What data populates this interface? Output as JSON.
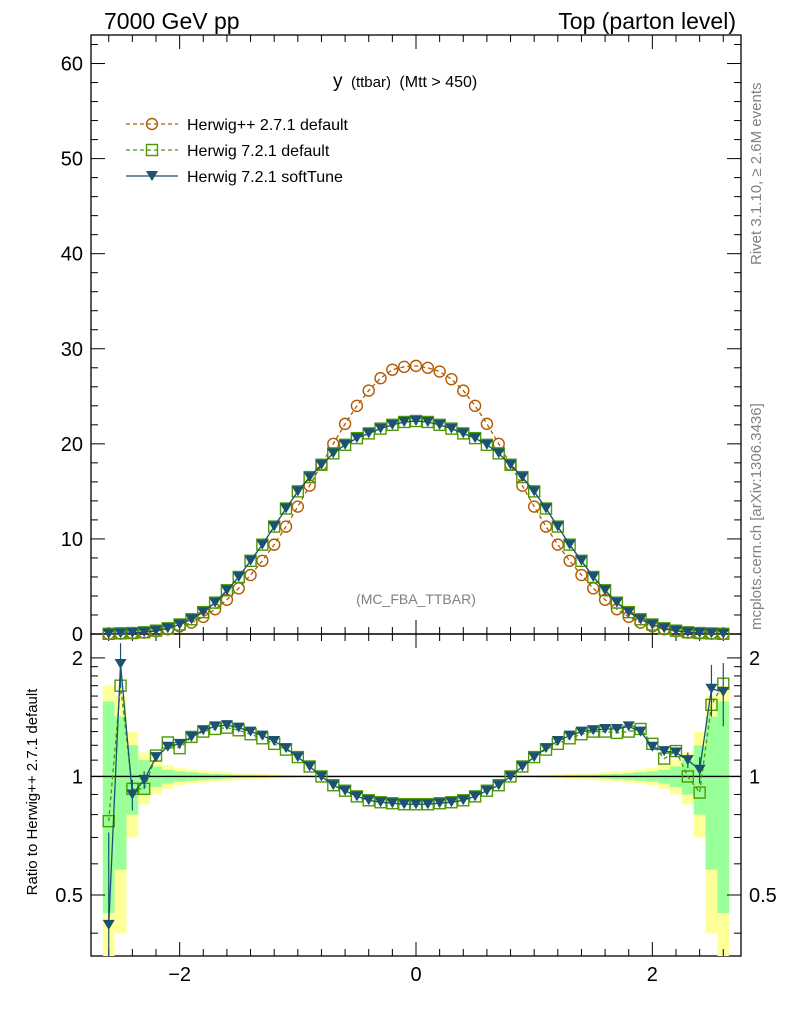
{
  "header": {
    "left": "7000 GeV pp",
    "right": "Top (parton level)"
  },
  "plot_title": {
    "main": "y",
    "sub1": "(ttbar)",
    "sub2": "(Mtt > 450)"
  },
  "side_labels": {
    "rivet": "Rivet 3.1.10, ≥ 2.6M events",
    "mcplots": "mcplots.cern.ch [arXiv:1306.3436]"
  },
  "watermark": "(MC_FBA_TTBAR)",
  "ratio_ylabel": "Ratio to Herwig++ 2.7.1 default",
  "legend": [
    {
      "label": "Herwig++ 2.7.1 default",
      "color": "#b35900",
      "marker": "circle-open",
      "dash": true
    },
    {
      "label": "Herwig 7.2.1 default",
      "color": "#4d9900",
      "marker": "square-open",
      "dash": true
    },
    {
      "label": "Herwig 7.2.1 softTune",
      "color": "#1a5270",
      "marker": "triangle-down-filled",
      "dash": false
    }
  ],
  "chart_data": [
    {
      "type": "line",
      "title": "y (ttbar) (Mtt > 450)",
      "xlim": [
        -2.75,
        2.75
      ],
      "ylim": [
        0,
        63
      ],
      "x_ticks": [
        -2,
        0,
        2
      ],
      "y_ticks": [
        0,
        10,
        20,
        30,
        40,
        50,
        60
      ],
      "x": [
        -2.6,
        -2.5,
        -2.4,
        -2.3,
        -2.2,
        -2.1,
        -2.0,
        -1.9,
        -1.8,
        -1.7,
        -1.6,
        -1.5,
        -1.4,
        -1.3,
        -1.2,
        -1.1,
        -1.0,
        -0.9,
        -0.8,
        -0.7,
        -0.6,
        -0.5,
        -0.4,
        -0.3,
        -0.2,
        -0.1,
        0.0,
        0.1,
        0.2,
        0.3,
        0.4,
        0.5,
        0.6,
        0.7,
        0.8,
        0.9,
        1.0,
        1.1,
        1.2,
        1.3,
        1.4,
        1.5,
        1.6,
        1.7,
        1.8,
        1.9,
        2.0,
        2.1,
        2.2,
        2.3,
        2.4,
        2.5,
        2.6
      ],
      "series": [
        {
          "name": "Herwig++ 2.7.1 default",
          "values": [
            0.02,
            0.04,
            0.08,
            0.14,
            0.3,
            0.5,
            0.8,
            1.2,
            1.8,
            2.6,
            3.6,
            4.8,
            6.2,
            7.7,
            9.4,
            11.3,
            13.4,
            15.6,
            17.8,
            20.0,
            22.1,
            24.0,
            25.6,
            26.9,
            27.8,
            28.1,
            28.2,
            28.0,
            27.6,
            26.8,
            25.6,
            24.0,
            22.1,
            20.0,
            17.8,
            15.6,
            13.4,
            11.3,
            9.4,
            7.7,
            6.2,
            4.8,
            3.6,
            2.6,
            1.8,
            1.2,
            0.8,
            0.5,
            0.3,
            0.14,
            0.08,
            0.04,
            0.02
          ]
        },
        {
          "name": "Herwig 7.2.1 default",
          "values": [
            0.02,
            0.07,
            0.1,
            0.18,
            0.35,
            0.6,
            1.0,
            1.55,
            2.3,
            3.3,
            4.6,
            6.0,
            7.7,
            9.4,
            11.3,
            13.2,
            15.0,
            16.5,
            17.8,
            19.0,
            19.9,
            20.6,
            21.1,
            21.6,
            22.0,
            22.3,
            22.4,
            22.3,
            22.0,
            21.6,
            21.1,
            20.6,
            19.9,
            19.0,
            17.8,
            16.5,
            15.0,
            13.2,
            11.3,
            9.4,
            7.7,
            6.0,
            4.6,
            3.3,
            2.3,
            1.55,
            1.0,
            0.6,
            0.35,
            0.18,
            0.1,
            0.06,
            0.02
          ]
        },
        {
          "name": "Herwig 7.2.1 softTune",
          "values": [
            0.02,
            0.07,
            0.1,
            0.18,
            0.35,
            0.6,
            1.0,
            1.55,
            2.3,
            3.3,
            4.6,
            6.0,
            7.7,
            9.4,
            11.3,
            13.2,
            15.0,
            16.5,
            17.8,
            19.0,
            19.9,
            20.6,
            21.1,
            21.6,
            22.0,
            22.3,
            22.4,
            22.3,
            22.0,
            21.6,
            21.1,
            20.6,
            19.9,
            19.0,
            17.8,
            16.5,
            15.0,
            13.2,
            11.3,
            9.4,
            7.7,
            6.0,
            4.6,
            3.3,
            2.3,
            1.55,
            1.0,
            0.6,
            0.35,
            0.18,
            0.1,
            0.06,
            0.02
          ]
        }
      ]
    },
    {
      "type": "line",
      "ylabel": "Ratio to Herwig++ 2.7.1 default",
      "xlim": [
        -2.75,
        2.75
      ],
      "ylim": [
        0.35,
        2.3
      ],
      "y_log": true,
      "x_ticks": [
        -2,
        0,
        2
      ],
      "y_ticks": [
        0.5,
        1,
        2
      ],
      "reference": 1,
      "x": [
        -2.6,
        -2.5,
        -2.4,
        -2.3,
        -2.2,
        -2.1,
        -2.0,
        -1.9,
        -1.8,
        -1.7,
        -1.6,
        -1.5,
        -1.4,
        -1.3,
        -1.2,
        -1.1,
        -1.0,
        -0.9,
        -0.8,
        -0.7,
        -0.6,
        -0.5,
        -0.4,
        -0.3,
        -0.2,
        -0.1,
        0.0,
        0.1,
        0.2,
        0.3,
        0.4,
        0.5,
        0.6,
        0.7,
        0.8,
        0.9,
        1.0,
        1.1,
        1.2,
        1.3,
        1.4,
        1.5,
        1.6,
        1.7,
        1.8,
        1.9,
        2.0,
        2.1,
        2.2,
        2.3,
        2.4,
        2.5,
        2.6
      ],
      "series": [
        {
          "name": "Herwig 7.2.1 default",
          "values": [
            0.77,
            1.7,
            0.93,
            0.93,
            1.13,
            1.22,
            1.18,
            1.26,
            1.3,
            1.32,
            1.33,
            1.31,
            1.28,
            1.25,
            1.21,
            1.17,
            1.12,
            1.06,
            1.0,
            0.95,
            0.92,
            0.89,
            0.87,
            0.86,
            0.855,
            0.85,
            0.85,
            0.85,
            0.855,
            0.86,
            0.87,
            0.89,
            0.92,
            0.95,
            1.0,
            1.06,
            1.12,
            1.17,
            1.21,
            1.25,
            1.28,
            1.3,
            1.3,
            1.29,
            1.3,
            1.32,
            1.21,
            1.11,
            1.16,
            1.0,
            0.91,
            1.52,
            1.72
          ]
        },
        {
          "name": "Herwig 7.2.1 softTune",
          "values": [
            0.42,
            1.93,
            0.9,
            0.98,
            1.12,
            1.19,
            1.21,
            1.26,
            1.31,
            1.34,
            1.35,
            1.33,
            1.3,
            1.27,
            1.23,
            1.18,
            1.12,
            1.06,
            1.0,
            0.95,
            0.92,
            0.89,
            0.87,
            0.86,
            0.855,
            0.85,
            0.85,
            0.85,
            0.855,
            0.86,
            0.87,
            0.89,
            0.92,
            0.95,
            1.0,
            1.06,
            1.12,
            1.18,
            1.23,
            1.27,
            1.3,
            1.31,
            1.32,
            1.32,
            1.34,
            1.3,
            1.19,
            1.16,
            1.15,
            1.1,
            1.04,
            1.67,
            1.64
          ]
        }
      ],
      "errors": {
        "Herwig 7.2.1 softTune": [
          0.3,
          0.25,
          0.08,
          0.05,
          0.03,
          0.02,
          0.015,
          0.01,
          0.01,
          0.01,
          0.01,
          0.01,
          0.01,
          0.01,
          0.01,
          0.01,
          0.01,
          0.01,
          0.01,
          0.01,
          0.01,
          0.01,
          0.01,
          0.01,
          0.01,
          0.01,
          0.01,
          0.01,
          0.01,
          0.01,
          0.01,
          0.01,
          0.01,
          0.01,
          0.01,
          0.01,
          0.01,
          0.01,
          0.01,
          0.01,
          0.01,
          0.01,
          0.01,
          0.01,
          0.01,
          0.015,
          0.02,
          0.02,
          0.03,
          0.05,
          0.08,
          0.25,
          0.3
        ]
      },
      "bands": {
        "inner_color": "#99ff99",
        "outer_color": "#ffff99",
        "inner_halfwidth": [
          0.55,
          0.42,
          0.2,
          0.1,
          0.06,
          0.04,
          0.03,
          0.025,
          0.02,
          0.015,
          0.012,
          0.01,
          0.009,
          0.008,
          0.007,
          0.006,
          0.005,
          0.005,
          0.005,
          0.004,
          0.004,
          0.004,
          0.004,
          0.004,
          0.004,
          0.004,
          0.004,
          0.004,
          0.004,
          0.004,
          0.004,
          0.004,
          0.004,
          0.004,
          0.005,
          0.005,
          0.005,
          0.006,
          0.007,
          0.008,
          0.009,
          0.01,
          0.012,
          0.015,
          0.02,
          0.025,
          0.03,
          0.04,
          0.06,
          0.1,
          0.2,
          0.42,
          0.55
        ],
        "outer_halfwidth": [
          0.7,
          0.6,
          0.3,
          0.15,
          0.1,
          0.07,
          0.05,
          0.04,
          0.035,
          0.03,
          0.025,
          0.02,
          0.018,
          0.015,
          0.012,
          0.01,
          0.009,
          0.008,
          0.008,
          0.007,
          0.007,
          0.007,
          0.007,
          0.007,
          0.007,
          0.007,
          0.007,
          0.007,
          0.007,
          0.007,
          0.007,
          0.007,
          0.007,
          0.007,
          0.008,
          0.008,
          0.009,
          0.01,
          0.012,
          0.015,
          0.018,
          0.02,
          0.025,
          0.03,
          0.035,
          0.04,
          0.05,
          0.07,
          0.1,
          0.15,
          0.3,
          0.6,
          0.7
        ]
      }
    }
  ]
}
